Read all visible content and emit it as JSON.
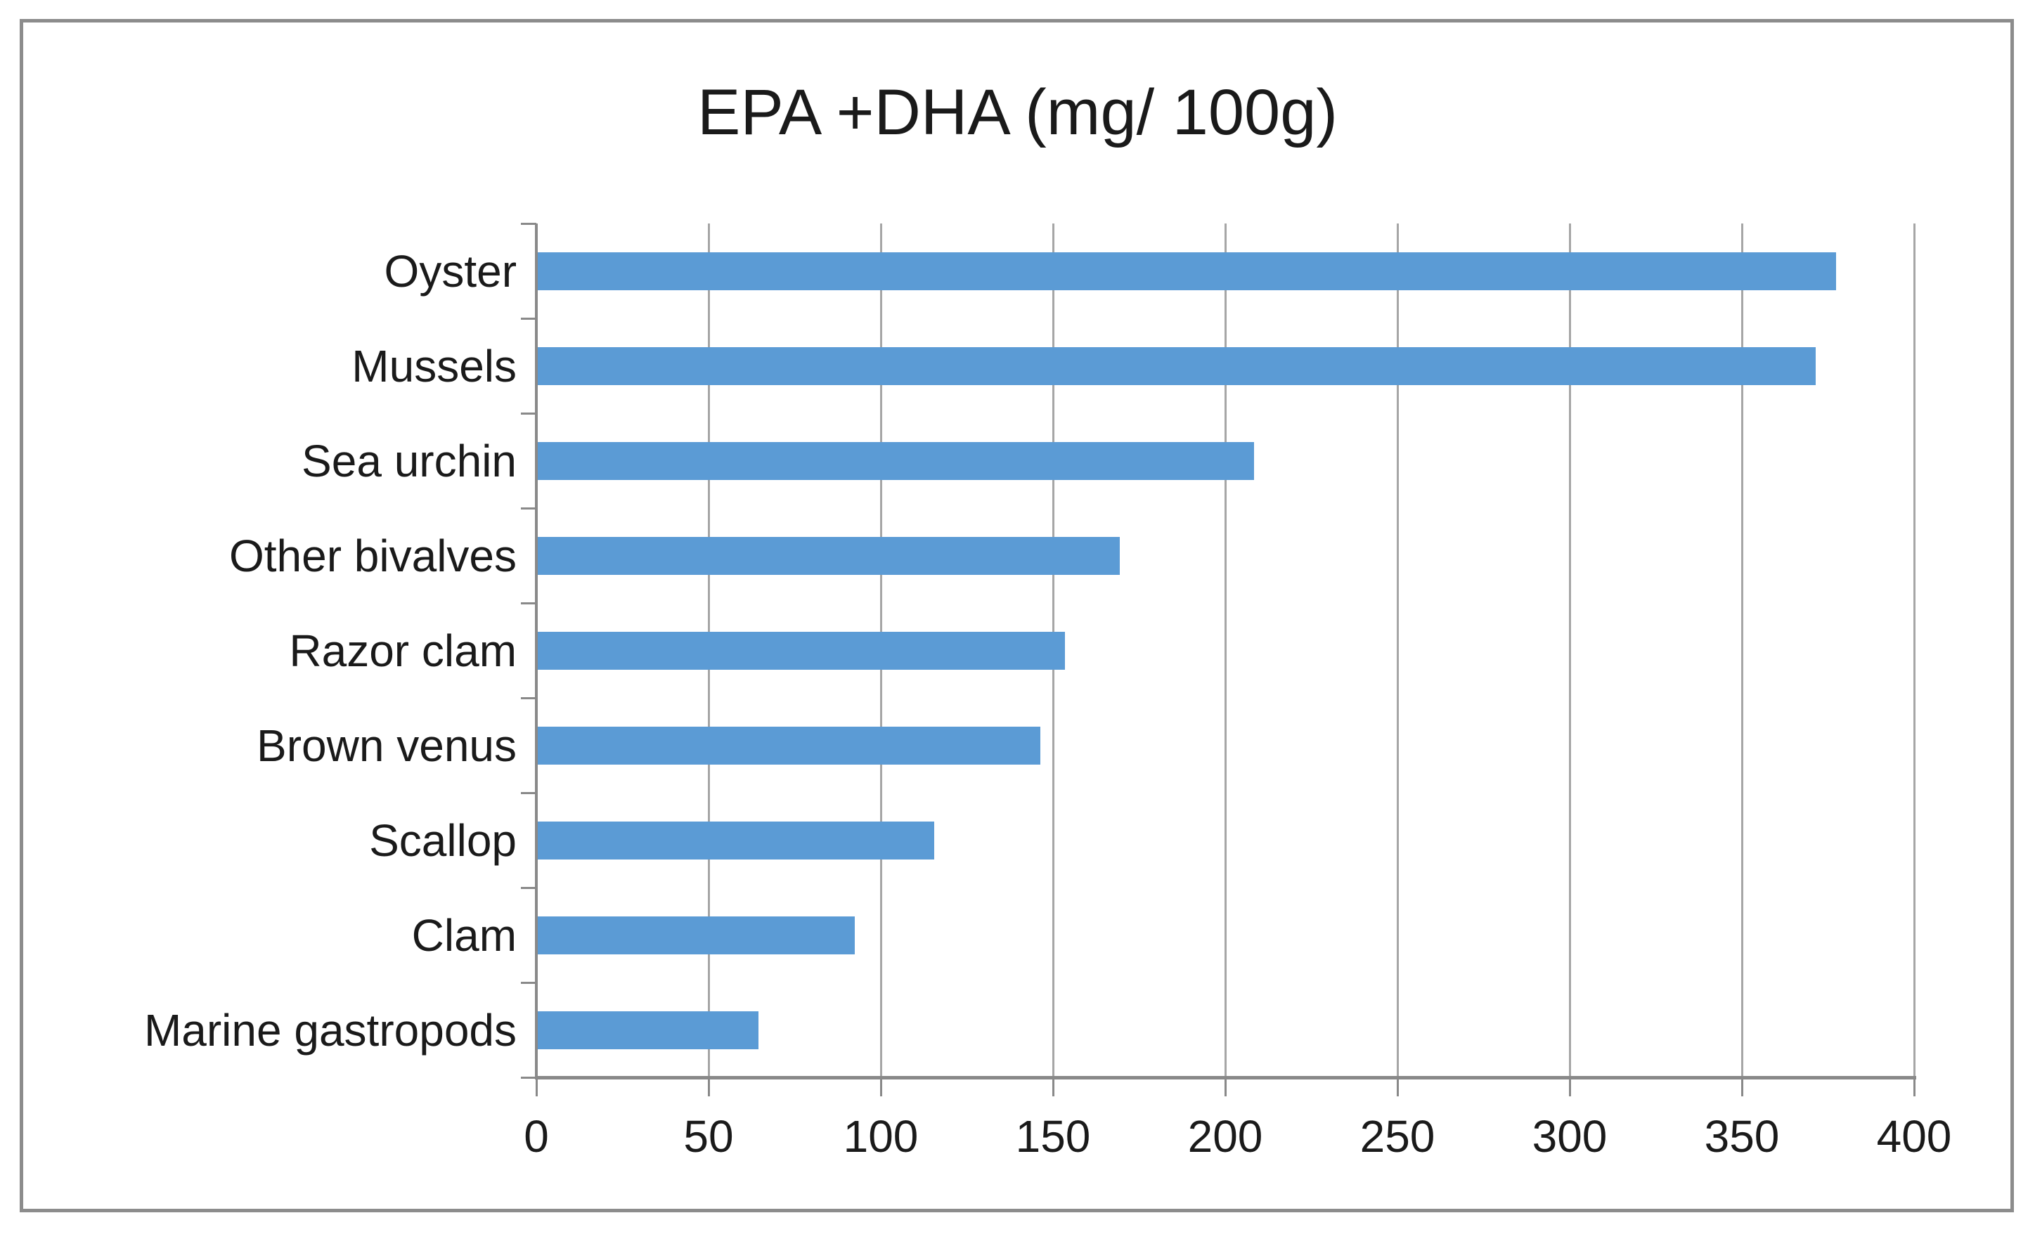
{
  "chart_data": {
    "type": "bar",
    "orientation": "horizontal",
    "title": "EPA +DHA (mg/ 100g)",
    "categories": [
      "Oyster",
      "Mussels",
      "Sea urchin",
      "Other bivalves",
      "Razor clam",
      "Brown venus",
      "Scallop",
      "Clam",
      "Marine gastropods"
    ],
    "values": [
      377,
      371,
      208,
      169,
      153,
      146,
      115,
      92,
      64
    ],
    "xlabel": "",
    "ylabel": "",
    "xlim": [
      0,
      400
    ],
    "x_ticks": [
      0,
      50,
      100,
      150,
      200,
      250,
      300,
      350,
      400
    ],
    "grid": true,
    "legend_position": "none",
    "colors": {
      "bar": "#5B9BD5",
      "gridline": "#A6A6A6",
      "axis": "#898989",
      "text": "#1A1A1A",
      "frame": "#8C8C8C"
    }
  }
}
